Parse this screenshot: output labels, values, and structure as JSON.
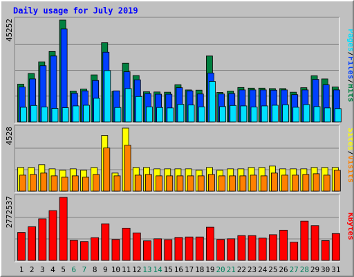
{
  "chart_data": {
    "type": "bar",
    "title": "Daily usage for July 2019",
    "categories": [
      "1",
      "2",
      "3",
      "4",
      "5",
      "6",
      "7",
      "8",
      "9",
      "10",
      "11",
      "12",
      "13",
      "14",
      "15",
      "16",
      "17",
      "18",
      "19",
      "20",
      "21",
      "22",
      "23",
      "24",
      "25",
      "26",
      "27",
      "28",
      "29",
      "30",
      "31"
    ],
    "weekend_days": [
      "6",
      "7",
      "13",
      "14",
      "20",
      "21",
      "27",
      "28"
    ],
    "colors": {
      "title": "#0000ff",
      "background": "#c0c0c0",
      "grid": "#808080",
      "day_label": "#000000",
      "weekend_label": "#00805c",
      "hits": "#008040",
      "files": "#0040ff",
      "pages": "#00e0ff",
      "visits": "#ff8000",
      "sites": "#ffff00",
      "kbytes": "#ff0000"
    },
    "panels": [
      {
        "name": "hits-files-pages",
        "ymax_label": "45252",
        "ymax": 45252,
        "legend": [
          "Pages",
          "/",
          "Files",
          "/",
          "Hits"
        ],
        "legend_colors": [
          "#00e0ff",
          "#000000",
          "#0040ff",
          "#000000",
          "#008040"
        ],
        "series": [
          {
            "name": "Hits",
            "values": [
              16800,
              21500,
              26700,
              31300,
              45252,
              13700,
              14600,
              20900,
              35200,
              13600,
              26100,
              20600,
              13400,
              13300,
              13200,
              16500,
              14200,
              14100,
              29300,
              13100,
              13700,
              15300,
              15000,
              15000,
              14800,
              14800,
              13200,
              15200,
              20500,
              19100,
              15500
            ]
          },
          {
            "name": "Files",
            "values": [
              15500,
              19100,
              25000,
              29300,
              41300,
              12700,
              13800,
              18400,
              31000,
              13800,
              22300,
              18700,
              12600,
              12300,
              12300,
              15200,
              13800,
              12400,
              21700,
              12400,
              12600,
              14200,
              14200,
              14200,
              14100,
              14200,
              12100,
              14200,
              18900,
              16500,
              14200
            ]
          },
          {
            "name": "Pages",
            "values": [
              6500,
              7300,
              6600,
              6000,
              6300,
              7100,
              7400,
              10500,
              22800,
              6400,
              14800,
              11300,
              6700,
              6400,
              6200,
              7800,
              7500,
              6700,
              18000,
              6800,
              7300,
              7100,
              6600,
              7100,
              7400,
              7600,
              6500,
              7700,
              6800,
              6200,
              5900
            ]
          }
        ]
      },
      {
        "name": "visits-sites",
        "ymax_label": "4528",
        "ymax": 4528,
        "legend": [
          "Sites",
          "/",
          "Visits"
        ],
        "legend_colors": [
          "#ffff00",
          "#000000",
          "#ff8000"
        ],
        "series": [
          {
            "name": "Sites",
            "values": [
              1700,
              1700,
              1900,
              1600,
              1500,
              1600,
              1500,
              1700,
              4000,
              1300,
              4528,
              1700,
              1700,
              1600,
              1600,
              1600,
              1600,
              1500,
              1700,
              1500,
              1600,
              1600,
              1700,
              1700,
              1800,
              1600,
              1600,
              1600,
              1700,
              1700,
              1700
            ]
          },
          {
            "name": "Visits",
            "values": [
              1150,
              1200,
              1300,
              1100,
              1000,
              1100,
              1000,
              1200,
              3100,
              1100,
              3300,
              1150,
              1200,
              1100,
              1100,
              1100,
              1100,
              1100,
              1200,
              1100,
              1100,
              1100,
              1150,
              1100,
              1300,
              1150,
              1150,
              1200,
              1250,
              1150,
              1500
            ]
          }
        ]
      },
      {
        "name": "kbytes",
        "ymax_label": "2772537",
        "ymax": 2772537,
        "legend": [
          "KBytes"
        ],
        "legend_colors": [
          "#ff0000"
        ],
        "series": [
          {
            "name": "KBytes",
            "values": [
              1230000,
              1480000,
              1830000,
              2190000,
              2772537,
              880000,
              830000,
              1000000,
              1610000,
              920000,
              1420000,
              1210000,
              860000,
              950000,
              910000,
              1010000,
              1030000,
              1030000,
              1460000,
              920000,
              950000,
              1090000,
              1090000,
              980000,
              1130000,
              1330000,
              800000,
              1730000,
              1530000,
              870000,
              1180000
            ]
          }
        ]
      }
    ]
  }
}
